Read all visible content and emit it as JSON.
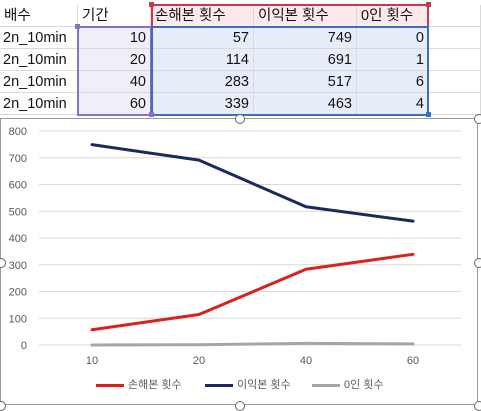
{
  "sheet": {
    "headers": [
      "배수",
      "기간",
      "손해본 횟수",
      "이익본 횟수",
      "0인 횟수"
    ],
    "rows": [
      [
        "2n_10min",
        "10",
        "57",
        "749",
        "0"
      ],
      [
        "2n_10min",
        "20",
        "114",
        "691",
        "1"
      ],
      [
        "2n_10min",
        "40",
        "283",
        "517",
        "6"
      ],
      [
        "2n_10min",
        "60",
        "339",
        "463",
        "4"
      ]
    ]
  },
  "colors": {
    "loss": "#d9211e",
    "profit": "#1a2a5e",
    "zero": "#a6a6a6",
    "range_purple": "#8a6fc7",
    "range_blue": "#3d6cc5",
    "range_red": "#c23b52"
  },
  "chart_data": {
    "type": "line",
    "categories": [
      "10",
      "20",
      "40",
      "60"
    ],
    "series": [
      {
        "name": "손해본 횟수",
        "values": [
          57,
          114,
          283,
          339
        ]
      },
      {
        "name": "이익본 횟수",
        "values": [
          749,
          691,
          517,
          463
        ]
      },
      {
        "name": "0인 횟수",
        "values": [
          0,
          1,
          6,
          4
        ]
      }
    ],
    "ylim": [
      0,
      800
    ],
    "yticks": [
      "0",
      "100",
      "200",
      "300",
      "400",
      "500",
      "600",
      "700",
      "800"
    ],
    "grid": true,
    "legend_position": "bottom"
  }
}
